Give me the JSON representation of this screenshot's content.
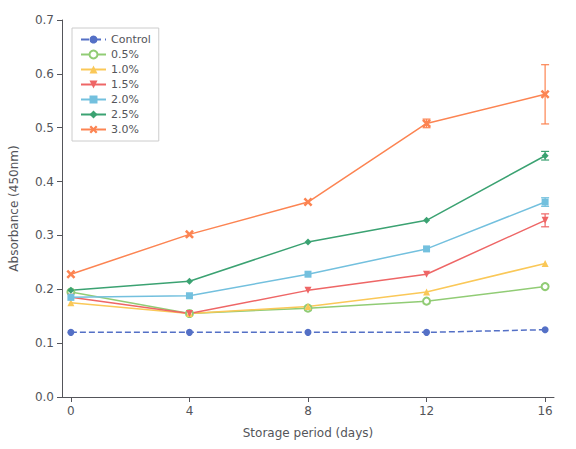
{
  "chart_data": {
    "type": "line",
    "x": [
      0,
      4,
      8,
      12,
      16
    ],
    "series": [
      {
        "name": "Control",
        "values": [
          0.12,
          0.12,
          0.12,
          0.12,
          0.125
        ],
        "error_bar": [
          0.0,
          0.0,
          0.0,
          0.0,
          0.0
        ],
        "marker": "circle",
        "line_style": "dashed"
      },
      {
        "name": "0.5%",
        "values": [
          0.195,
          0.155,
          0.165,
          0.178,
          0.205
        ],
        "error_bar": [
          0.0,
          0.0,
          0.0,
          0.0,
          0.0
        ],
        "marker": "open_circle",
        "line_style": "solid"
      },
      {
        "name": "1.0%",
        "values": [
          0.175,
          0.155,
          0.168,
          0.195,
          0.248
        ],
        "error_bar": [
          0.0,
          0.0,
          0.0,
          0.0,
          0.0
        ],
        "marker": "triangle",
        "line_style": "solid"
      },
      {
        "name": "1.5%",
        "values": [
          0.185,
          0.155,
          0.198,
          0.228,
          0.328
        ],
        "error_bar": [
          0.0,
          0.0,
          0.0,
          0.0,
          0.012
        ],
        "marker": "triangle_down",
        "line_style": "solid"
      },
      {
        "name": "2.0%",
        "values": [
          0.185,
          0.188,
          0.228,
          0.275,
          0.362
        ],
        "error_bar": [
          0.0,
          0.0,
          0.0,
          0.0,
          0.008
        ],
        "marker": "square",
        "line_style": "solid"
      },
      {
        "name": "2.5%",
        "values": [
          0.198,
          0.215,
          0.288,
          0.328,
          0.448
        ],
        "error_bar": [
          0.0,
          0.0,
          0.0,
          0.0,
          0.008
        ],
        "marker": "diamond",
        "line_style": "solid"
      },
      {
        "name": "3.0%",
        "values": [
          0.228,
          0.302,
          0.362,
          0.508,
          0.562
        ],
        "error_bar": [
          0.0,
          0.0,
          0.0,
          0.008,
          0.055
        ],
        "marker": "x",
        "line_style": "solid"
      }
    ],
    "xlabel": "Storage period (days)",
    "ylabel": "Absorbance (450nm)",
    "xlim": [
      -0.3,
      16.3
    ],
    "ylim": [
      0.0,
      0.7
    ],
    "xticks": [
      0,
      4,
      8,
      12,
      16
    ],
    "yticks": [
      {
        "value": 0.0,
        "label": "0.0"
      },
      0.1,
      0.2,
      0.3,
      0.4,
      0.5,
      0.6,
      0.7
    ],
    "legend": "upper left",
    "grid": false
  }
}
